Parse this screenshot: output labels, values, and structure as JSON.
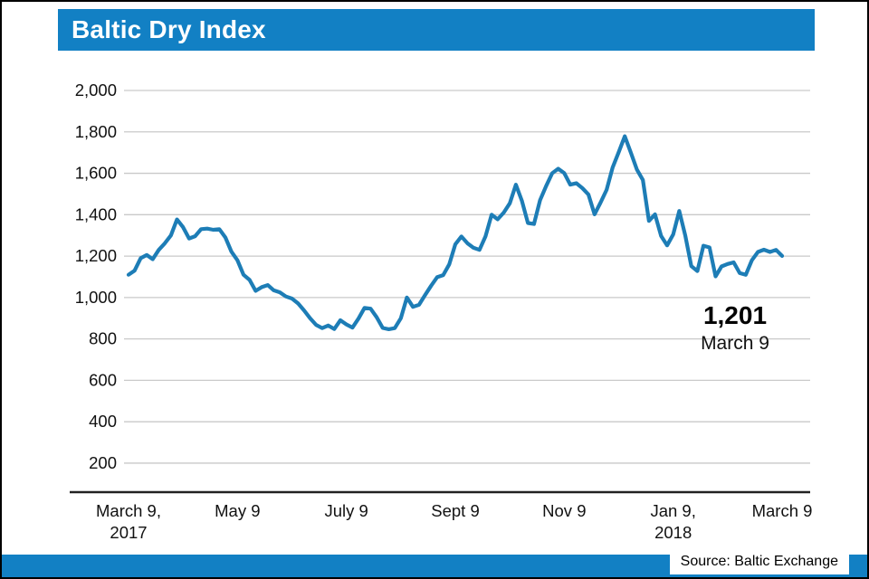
{
  "header": {
    "title": "Baltic Dry Index"
  },
  "annotation": {
    "value": "1,201",
    "date": "March 9"
  },
  "source": {
    "label": "Source: Baltic Exchange"
  },
  "colors": {
    "accent_blue": "#1280c4",
    "line_blue": "#1d7db6",
    "gridline": "#c9c9c9",
    "axis": "#222222",
    "text": "#111111"
  },
  "chart_data": {
    "type": "line",
    "title": "Baltic Dry Index",
    "ylim": [
      0,
      2000
    ],
    "gridline_step": 200,
    "grid": "horizontal",
    "legend": "none",
    "y_tick_labels": [
      "2,000",
      "1,800",
      "1,600",
      "1,400",
      "1,200",
      "1,000",
      "800",
      "600",
      "400",
      "200"
    ],
    "x_tick_labels": [
      [
        "March 9,",
        "2017"
      ],
      [
        "May 9"
      ],
      [
        "July 9"
      ],
      [
        "Sept 9"
      ],
      [
        "Nov 9"
      ],
      [
        "Jan 9,",
        "2018"
      ],
      [
        "March 9"
      ]
    ],
    "x_range": [
      "March 9, 2017",
      "March 9, 2018"
    ],
    "last_point": {
      "date": "March 9",
      "value": 1201
    },
    "series": [
      {
        "name": "Baltic Dry Index",
        "values": [
          1110,
          1130,
          1190,
          1205,
          1185,
          1230,
          1262,
          1300,
          1377,
          1340,
          1285,
          1296,
          1330,
          1333,
          1327,
          1330,
          1290,
          1222,
          1180,
          1110,
          1085,
          1032,
          1050,
          1060,
          1035,
          1025,
          1005,
          995,
          972,
          938,
          900,
          868,
          852,
          865,
          848,
          890,
          870,
          855,
          898,
          950,
          946,
          905,
          853,
          847,
          852,
          900,
          1000,
          955,
          965,
          1012,
          1057,
          1098,
          1108,
          1160,
          1257,
          1295,
          1262,
          1240,
          1230,
          1296,
          1400,
          1378,
          1410,
          1455,
          1545,
          1468,
          1360,
          1355,
          1470,
          1538,
          1600,
          1622,
          1601,
          1545,
          1552,
          1528,
          1497,
          1402,
          1458,
          1520,
          1628,
          1702,
          1779,
          1700,
          1618,
          1568,
          1370,
          1402,
          1298,
          1252,
          1305,
          1418,
          1300,
          1152,
          1128,
          1250,
          1242,
          1102,
          1150,
          1162,
          1170,
          1118,
          1110,
          1180,
          1220,
          1231,
          1220,
          1230,
          1201
        ]
      }
    ]
  }
}
